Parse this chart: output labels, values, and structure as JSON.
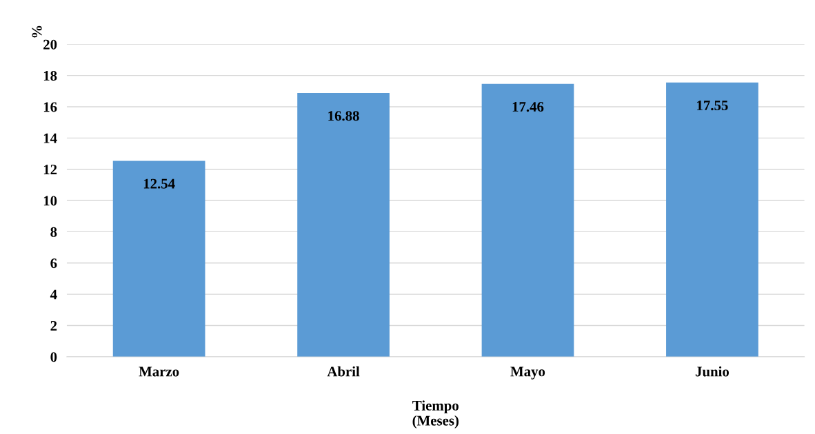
{
  "chart_data": {
    "type": "bar",
    "ylabel": "%",
    "xlabel": "Tiempo\n(Meses)",
    "categories": [
      "Marzo",
      "Abril",
      "Mayo",
      "Junio"
    ],
    "values": [
      12.54,
      16.88,
      17.46,
      17.55
    ],
    "color": "#5b9bd5",
    "ylim": [
      0,
      20
    ],
    "yticks": [
      0,
      2,
      4,
      6,
      8,
      10,
      12,
      14,
      16,
      18,
      20
    ],
    "grid": "y",
    "data_labels": true
  }
}
